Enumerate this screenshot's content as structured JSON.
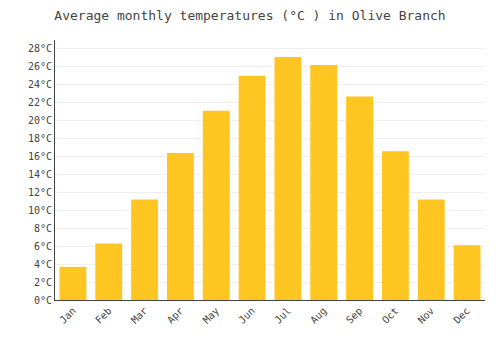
{
  "chart_data": {
    "type": "bar",
    "title": "Average monthly temperatures (°C ) in Olive Branch",
    "categories": [
      "Jan",
      "Feb",
      "Mar",
      "Apr",
      "May",
      "Jun",
      "Jul",
      "Aug",
      "Sep",
      "Oct",
      "Nov",
      "Dec"
    ],
    "values": [
      3.7,
      6.3,
      11.2,
      16.4,
      21.1,
      25.0,
      27.1,
      26.2,
      22.7,
      16.6,
      11.2,
      6.1
    ],
    "color": "#FFC520",
    "ylim": [
      0,
      29
    ],
    "yticks": [
      {
        "value": 0,
        "label": "0°C"
      },
      {
        "value": 2,
        "label": "2°C"
      },
      {
        "value": 4,
        "label": "4°C"
      },
      {
        "value": 6,
        "label": "6°C"
      },
      {
        "value": 8,
        "label": "8°C"
      },
      {
        "value": 10,
        "label": "10°C"
      },
      {
        "value": 12,
        "label": "12°C"
      },
      {
        "value": 14,
        "label": "14°C"
      },
      {
        "value": 16,
        "label": "16°C"
      },
      {
        "value": 18,
        "label": "18°C"
      },
      {
        "value": 20,
        "label": "20°C"
      },
      {
        "value": 22,
        "label": "22°C"
      },
      {
        "value": 24,
        "label": "24°C"
      },
      {
        "value": 26,
        "label": "26°C"
      },
      {
        "value": 28,
        "label": "28°C"
      }
    ],
    "grid": true
  }
}
